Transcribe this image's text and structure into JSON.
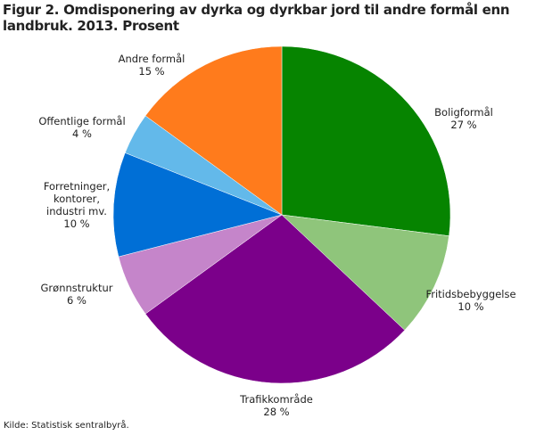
{
  "chart_data": {
    "type": "pie",
    "title": "Figur 2. Omdisponering av dyrka og dyrkbar jord til andre formål enn landbruk. 2013. Prosent",
    "categories": [
      "Boligformål",
      "Fritidsbebyggelse",
      "Trafikkområde",
      "Grønnstruktur",
      "Forretninger, kontorer, industri mv.",
      "Offentlige formål",
      "Andre formål"
    ],
    "values": [
      27,
      10,
      28,
      6,
      10,
      4,
      15
    ],
    "value_labels": [
      "27 %",
      "10 %",
      "28 %",
      "6 %",
      "10 %",
      "4 %",
      "15 %"
    ],
    "colors": [
      "#068400",
      "#8fc57b",
      "#7b008a",
      "#c585ca",
      "#006fd6",
      "#63b9ea",
      "#ff7b1c"
    ],
    "source": "Kilde: Statistisk sentralbyrå."
  }
}
